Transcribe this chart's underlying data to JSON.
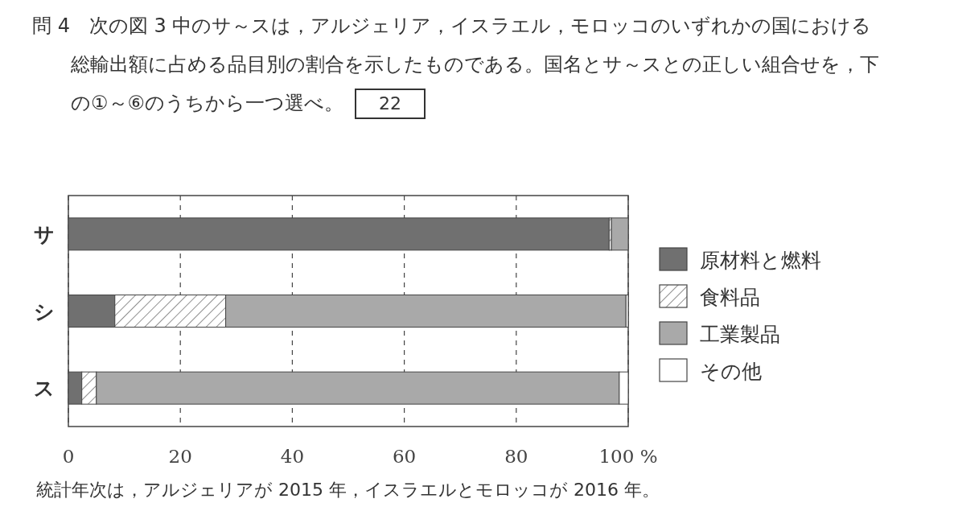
{
  "chart_data": {
    "type": "bar",
    "orientation": "horizontal",
    "stacked": true,
    "title": "問 4　次の図 3 中のサ～スは，アルジェリア，イスラエル，モロッコのいずれかの国における総輸出額に占める品目別の割合を示したものである。国名とサ～スとの正しい組合せを，下の①～⑥のうちから一つ選べ。",
    "categories": [
      "サ",
      "シ",
      "ス"
    ],
    "series": [
      {
        "name": "原材料と燃料",
        "color": "#707070",
        "values": [
          96.6,
          8.3,
          2.4
        ]
      },
      {
        "name": "食料品",
        "color": "#ffffff",
        "values": [
          0.4,
          19.8,
          2.6
        ]
      },
      {
        "name": "工業製品",
        "color": "#a9a9a9",
        "values": [
          3.0,
          71.5,
          93.4
        ]
      },
      {
        "name": "その他",
        "color": "#ffffff",
        "values": [
          0,
          0.4,
          1.6
        ]
      }
    ],
    "xlim": [
      0,
      100
    ],
    "xticks": [
      0,
      20,
      40,
      60,
      80,
      {
        "value": 100,
        "label": "100 %"
      }
    ],
    "grid": "x",
    "legend": "right",
    "annotations": [
      "22",
      "統計年次は，アルジェリアが 2015 年，イスラエルとモロッコが 2016 年。"
    ]
  }
}
